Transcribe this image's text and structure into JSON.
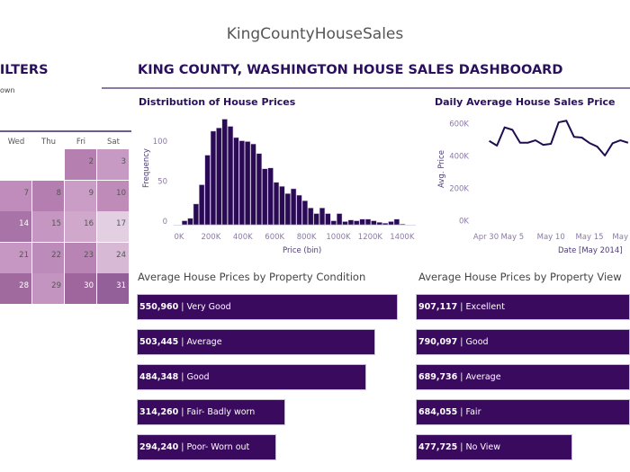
{
  "app_title": "KingCountyHouseSales",
  "filters": {
    "title": "FILTERS",
    "note": "own"
  },
  "dashboard_title": "KING COUNTY, WASHINGTON HOUSE SALES DASHBOOARD",
  "calendar": {
    "weekdays": [
      "Wed",
      "Thu",
      "Fri",
      "Sat"
    ],
    "rows": [
      [
        {
          "day": "",
          "color": "#ffffff"
        },
        {
          "day": "",
          "color": "#ffffff"
        },
        {
          "day": "2",
          "color": "#b57fb0"
        },
        {
          "day": "3",
          "color": "#c79ac4"
        }
      ],
      [
        {
          "day": "7",
          "color": "#c08cbb"
        },
        {
          "day": "8",
          "color": "#b47fb0"
        },
        {
          "day": "9",
          "color": "#c99dc6"
        },
        {
          "day": "10",
          "color": "#bf8cba"
        }
      ],
      [
        {
          "day": "14",
          "color": "#a873a6"
        },
        {
          "day": "15",
          "color": "#c496c1"
        },
        {
          "day": "16",
          "color": "#cfa8cc"
        },
        {
          "day": "17",
          "color": "#e2cfe1"
        }
      ],
      [
        {
          "day": "21",
          "color": "#c597c2"
        },
        {
          "day": "22",
          "color": "#bd8bb9"
        },
        {
          "day": "23",
          "color": "#b784b3"
        },
        {
          "day": "24",
          "color": "#d7b9d5"
        }
      ],
      [
        {
          "day": "28",
          "color": "#a06a9f"
        },
        {
          "day": "29",
          "color": "#c394c0"
        },
        {
          "day": "30",
          "color": "#9e669c"
        },
        {
          "day": "31",
          "color": "#94609a"
        }
      ]
    ]
  },
  "chart_data": [
    {
      "type": "bar",
      "title": "Distribution of House Prices",
      "xlabel": "Price (bin)",
      "ylabel": "Frequency",
      "bin_width_k": 36,
      "x": [
        36,
        72,
        108,
        144,
        180,
        216,
        252,
        288,
        324,
        360,
        396,
        432,
        468,
        504,
        540,
        576,
        612,
        648,
        684,
        720,
        756,
        792,
        828,
        864,
        900,
        936,
        972,
        1008,
        1044,
        1080,
        1116,
        1152,
        1188,
        1224,
        1260,
        1296,
        1332,
        1368,
        1404
      ],
      "values": [
        5,
        8,
        26,
        50,
        87,
        117,
        121,
        132,
        123,
        109,
        105,
        104,
        101,
        89,
        70,
        71,
        53,
        48,
        39,
        45,
        37,
        30,
        21,
        14,
        21,
        14,
        5,
        14,
        4,
        6,
        5,
        7,
        7,
        5,
        3,
        2,
        4,
        7,
        1
      ],
      "xticks": [
        "0K",
        "200K",
        "400K",
        "600K",
        "800K",
        "1000K",
        "1200K",
        "1400K"
      ],
      "yticks": [
        "0",
        "50",
        "100"
      ],
      "color": "#2a0a55"
    },
    {
      "type": "line",
      "title": "Daily Average House Sales Price",
      "xlabel": "Date [May 2014]",
      "ylabel": "Avg. Price",
      "x": [
        "2014-05-02",
        "2014-05-03",
        "2014-05-04",
        "2014-05-05",
        "2014-05-06",
        "2014-05-07",
        "2014-05-08",
        "2014-05-09",
        "2014-05-10",
        "2014-05-11",
        "2014-05-12",
        "2014-05-13",
        "2014-05-14",
        "2014-05-15",
        "2014-05-16",
        "2014-05-17",
        "2014-05-18",
        "2014-05-19",
        "2014-05-20"
      ],
      "values": [
        494,
        465,
        578,
        563,
        483,
        483,
        498,
        470,
        476,
        609,
        619,
        519,
        515,
        481,
        459,
        404,
        480,
        498,
        483
      ],
      "unit": "K",
      "ylim": [
        0,
        600
      ],
      "xticks": [
        "Apr 30",
        "May 5",
        "May 10",
        "May 15",
        "May"
      ],
      "yticks": [
        "0K",
        "200K",
        "400K",
        "600K"
      ],
      "color": "#1f0d4f"
    },
    {
      "type": "bar",
      "orientation": "horizontal",
      "title": "Average House Prices by Property Condition",
      "categories": [
        "Very Good",
        "Average",
        "Good",
        "Fair- Badly worn",
        "Poor- Worn out"
      ],
      "values": [
        550960,
        503445,
        484348,
        314260,
        294240
      ],
      "labels": [
        "550,960",
        "503,445",
        "484,348",
        "314,260",
        "294,240"
      ],
      "color": "#3a0a5e"
    },
    {
      "type": "bar",
      "orientation": "horizontal",
      "title": "Average House Prices by Property View",
      "categories": [
        "Excellent",
        "Good",
        "Average",
        "Fair",
        "No View"
      ],
      "values": [
        907117,
        790097,
        689736,
        684055,
        477725
      ],
      "labels": [
        "907,117",
        "790,097",
        "689,736",
        "684,055",
        "477,725"
      ],
      "color": "#3a0a5e"
    }
  ]
}
